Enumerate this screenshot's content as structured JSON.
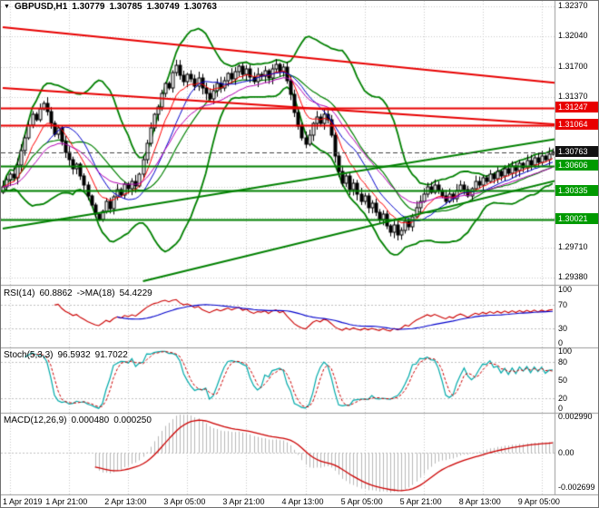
{
  "header": {
    "dropdown_icon": "▼",
    "symbol": "GBPUSD,H1",
    "open": "1.30779",
    "high": "1.30785",
    "low": "1.30749",
    "close": "1.30763"
  },
  "colors": {
    "grid": "#c8c8c8",
    "candle_up": "#ffffff",
    "candle_down": "#000000",
    "candle_border": "#000000",
    "bollinger": "#008000",
    "ma_fast": "#ff0000",
    "ma_mid": "#0000cc",
    "ma_slow": "#b400b4",
    "resistance": "#e80000",
    "support": "#008000",
    "current_price_badge": "#111111",
    "rsi_line": "#cc0000",
    "rsi_ma": "#0000cc",
    "stoch_main": "#00aaaa",
    "stoch_signal": "#cc0000",
    "macd_hist": "#b8b8b8",
    "macd_signal": "#cc0000"
  },
  "price_axis": {
    "plain": [
      {
        "text": "1.32370",
        "price": 1.3237
      },
      {
        "text": "1.32040",
        "price": 1.3204
      },
      {
        "text": "1.31700",
        "price": 1.317
      },
      {
        "text": "1.31370",
        "price": 1.3137
      },
      {
        "text": "1.29710",
        "price": 1.2971
      },
      {
        "text": "1.29380",
        "price": 1.2938
      }
    ],
    "badges": [
      {
        "text": "1.31247",
        "price": 1.31247,
        "bg": "#e80000"
      },
      {
        "text": "1.31064",
        "price": 1.31064,
        "bg": "#e80000"
      },
      {
        "text": "1.30763",
        "price": 1.30763,
        "bg": "#111111"
      },
      {
        "text": "1.30606",
        "price": 1.30606,
        "bg": "#009a00"
      },
      {
        "text": "1.30335",
        "price": 1.30335,
        "bg": "#009a00"
      },
      {
        "text": "1.30021",
        "price": 1.30021,
        "bg": "#009a00"
      }
    ]
  },
  "panels": {
    "rsi": {
      "name": "RSI(14)",
      "value": "60.8862",
      "ma_name": "->MA(18)",
      "ma_value": "54.4229",
      "scale": [
        {
          "text": "100",
          "val": 100
        },
        {
          "text": "70",
          "val": 70
        },
        {
          "text": "30",
          "val": 30
        },
        {
          "text": "0",
          "val": 0
        }
      ]
    },
    "stoch": {
      "name": "Stoch(5,3,3)",
      "value": "96.5932",
      "signal_value": "91.7022",
      "scale": [
        {
          "text": "100",
          "val": 100
        },
        {
          "text": "80",
          "val": 80
        },
        {
          "text": "50",
          "val": 50
        },
        {
          "text": "20",
          "val": 20
        },
        {
          "text": "0",
          "val": 0
        }
      ]
    },
    "macd": {
      "name": "MACD(12,26,9)",
      "value": "0.000480",
      "signal_value": "0.000250",
      "scale": [
        {
          "text": "0.002990",
          "val": 0.00299
        },
        {
          "text": "0.00",
          "val": 0
        },
        {
          "text": "-0.002699",
          "val": -0.002699
        }
      ]
    }
  },
  "chart_data": {
    "type": "candlestick",
    "symbol": "GBPUSD",
    "timeframe": "H1",
    "current_price": 1.30763,
    "y_range": {
      "min": 1.2931,
      "max": 1.3243
    },
    "grid_prices": [
      1.3237,
      1.3204,
      1.317,
      1.3137,
      1.3104,
      1.3071,
      1.3038,
      1.3004,
      1.2971,
      1.2938
    ],
    "x_ticks": [
      {
        "bar": 2,
        "label": "1 Apr 2019"
      },
      {
        "bar": 18,
        "label": "1 Apr 21:00"
      },
      {
        "bar": 34,
        "label": "2 Apr 13:00"
      },
      {
        "bar": 50,
        "label": "3 Apr 05:00"
      },
      {
        "bar": 66,
        "label": "3 Apr 21:00"
      },
      {
        "bar": 82,
        "label": "4 Apr 13:00"
      },
      {
        "bar": 98,
        "label": "5 Apr 05:00"
      },
      {
        "bar": 114,
        "label": "5 Apr 21:00"
      },
      {
        "bar": 130,
        "label": "8 Apr 13:00"
      },
      {
        "bar": 146,
        "label": "9 Apr 05:00"
      }
    ],
    "closes": [
      1.3038,
      1.3046,
      1.3052,
      1.3048,
      1.3062,
      1.3078,
      1.3092,
      1.3106,
      1.3118,
      1.3112,
      1.3124,
      1.313,
      1.3121,
      1.3108,
      1.3096,
      1.3103,
      1.3088,
      1.3076,
      1.3068,
      1.3058,
      1.3063,
      1.305,
      1.304,
      1.3028,
      1.3018,
      1.3008,
      1.3002,
      1.3011,
      1.3022,
      1.3014,
      1.3027,
      1.3035,
      1.3029,
      1.3041,
      1.3036,
      1.3044,
      1.3039,
      1.3052,
      1.3068,
      1.3086,
      1.3103,
      1.3118,
      1.3126,
      1.3141,
      1.3152,
      1.3147,
      1.3164,
      1.3172,
      1.3161,
      1.3154,
      1.3162,
      1.3157,
      1.3149,
      1.3158,
      1.3147,
      1.3141,
      1.3135,
      1.3144,
      1.3152,
      1.3147,
      1.3155,
      1.3163,
      1.3157,
      1.3165,
      1.3171,
      1.3162,
      1.3168,
      1.3159,
      1.3154,
      1.3162,
      1.316,
      1.3166,
      1.3158,
      1.3168,
      1.3173,
      1.3165,
      1.317,
      1.3155,
      1.314,
      1.312,
      1.3105,
      1.3092,
      1.3085,
      1.3095,
      1.3108,
      1.3115,
      1.3108,
      1.3118,
      1.3112,
      1.3095,
      1.3072,
      1.3055,
      1.3042,
      1.305,
      1.3035,
      1.3042,
      1.303,
      1.3022,
      1.3028,
      1.3015,
      1.302,
      1.301,
      1.3002,
      1.3008,
      1.2995,
      1.2988,
      1.2996,
      1.2985,
      1.299,
      1.3,
      1.2994,
      1.3005,
      1.3015,
      1.3022,
      1.303,
      1.3038,
      1.3032,
      1.304,
      1.3034,
      1.3028,
      1.3022,
      1.303,
      1.3025,
      1.3034,
      1.304,
      1.3035,
      1.3028,
      1.3036,
      1.3044,
      1.304,
      1.3048,
      1.3044,
      1.3052,
      1.3047,
      1.3055,
      1.305,
      1.3058,
      1.3053,
      1.3061,
      1.3056,
      1.3064,
      1.3059,
      1.3067,
      1.3062,
      1.307,
      1.3065,
      1.3072,
      1.3068,
      1.3074,
      1.30763
    ],
    "overlays": {
      "bollinger": {
        "period": 20,
        "deviation": 2,
        "color": "#008000"
      },
      "moving_averages": [
        {
          "type": "ema",
          "period": 8,
          "color": "#ff0000"
        },
        {
          "type": "sma",
          "period": 13,
          "color": "#0000cc"
        },
        {
          "type": "ema",
          "period": 21,
          "color": "#b400b4"
        }
      ]
    },
    "levels": [
      {
        "price": 1.31247,
        "color": "#e80000",
        "width": 2
      },
      {
        "price": 1.31064,
        "color": "#e80000",
        "width": 2
      },
      {
        "price": 1.30606,
        "color": "#008000",
        "width": 2
      },
      {
        "price": 1.30335,
        "color": "#008000",
        "width": 2
      },
      {
        "price": 1.30021,
        "color": "#008000",
        "width": 2
      }
    ],
    "trendlines": [
      {
        "name": "descending-resistance-1",
        "color": "#e80000",
        "width": 2,
        "bar1": 0,
        "price1": 1.3214,
        "bar2": 161,
        "price2": 1.3148
      },
      {
        "name": "descending-resistance-2",
        "color": "#e80000",
        "width": 2,
        "bar1": 0,
        "price1": 1.3147,
        "bar2": 161,
        "price2": 1.3104
      },
      {
        "name": "ascending-support-1",
        "color": "#008000",
        "width": 2,
        "bar1": 0,
        "price1": 1.2992,
        "bar2": 161,
        "price2": 1.3098
      },
      {
        "name": "ascending-support-2",
        "color": "#008000",
        "width": 2,
        "bar1": 38,
        "price1": 1.2934,
        "bar2": 161,
        "price2": 1.3056
      }
    ],
    "indicators": {
      "rsi": {
        "period": 14,
        "ma_period": 18,
        "current": 60.8862,
        "ma_current": 54.4229,
        "levels": [
          30,
          70
        ]
      },
      "stoch": {
        "k_period": 5,
        "d_period": 3,
        "slowing": 3,
        "current": 96.5932,
        "signal_current": 91.7022,
        "levels": [
          20,
          80
        ]
      },
      "macd": {
        "fast": 12,
        "slow": 26,
        "signal": 9,
        "current": 0.00048,
        "signal_value": 0.00025
      }
    }
  }
}
